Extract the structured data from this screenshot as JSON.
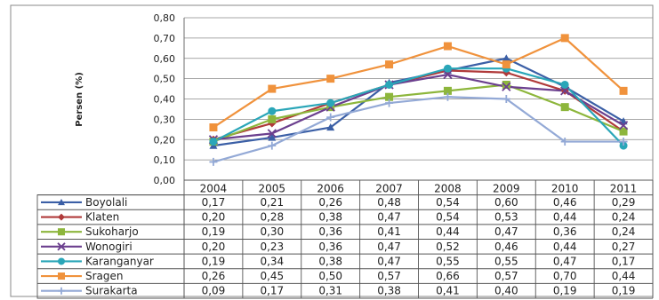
{
  "chart_data": {
    "type": "line",
    "ylabel": "Persen (%)",
    "ylim": [
      0,
      0.8
    ],
    "yticks": [
      "0,00",
      "0,10",
      "0,20",
      "0,30",
      "0,40",
      "0,50",
      "0,60",
      "0,70",
      "0,80"
    ],
    "categories": [
      "2004",
      "2005",
      "2006",
      "2007",
      "2008",
      "2009",
      "2010",
      "2011"
    ],
    "series": [
      {
        "name": "Boyolali",
        "color": "#3b5fa6",
        "marker": "triangle",
        "values": [
          0.17,
          0.21,
          0.26,
          0.48,
          0.54,
          0.6,
          0.46,
          0.29
        ],
        "labels": [
          "0,17",
          "0,21",
          "0,26",
          "0,48",
          "0,54",
          "0,60",
          "0,46",
          "0,29"
        ]
      },
      {
        "name": "Klaten",
        "color": "#b03a3a",
        "marker": "diamond",
        "values": [
          0.2,
          0.28,
          0.38,
          0.47,
          0.54,
          0.53,
          0.44,
          0.24
        ],
        "labels": [
          "0,20",
          "0,28",
          "0,38",
          "0,47",
          "0,54",
          "0,53",
          "0,44",
          "0,24"
        ]
      },
      {
        "name": "Sukoharjo",
        "color": "#8db63c",
        "marker": "square",
        "values": [
          0.19,
          0.3,
          0.36,
          0.41,
          0.44,
          0.47,
          0.36,
          0.24
        ],
        "labels": [
          "0,19",
          "0,30",
          "0,36",
          "0,41",
          "0,44",
          "0,47",
          "0,36",
          "0,24"
        ]
      },
      {
        "name": "Wonogiri",
        "color": "#6b3f8e",
        "marker": "x",
        "values": [
          0.2,
          0.23,
          0.36,
          0.47,
          0.52,
          0.46,
          0.44,
          0.27
        ],
        "labels": [
          "0,20",
          "0,23",
          "0,36",
          "0,47",
          "0,52",
          "0,46",
          "0,44",
          "0,27"
        ]
      },
      {
        "name": "Karanganyar",
        "color": "#2aa6b8",
        "marker": "circle",
        "values": [
          0.19,
          0.34,
          0.38,
          0.47,
          0.55,
          0.55,
          0.47,
          0.17
        ],
        "labels": [
          "0,19",
          "0,34",
          "0,38",
          "0,47",
          "0,55",
          "0,55",
          "0,47",
          "0,17"
        ]
      },
      {
        "name": "Sragen",
        "color": "#f0923c",
        "marker": "square",
        "values": [
          0.26,
          0.45,
          0.5,
          0.57,
          0.66,
          0.57,
          0.7,
          0.44
        ],
        "labels": [
          "0,26",
          "0,45",
          "0,50",
          "0,57",
          "0,66",
          "0,57",
          "0,70",
          "0,44"
        ]
      },
      {
        "name": "Surakarta",
        "color": "#93a9d6",
        "marker": "plus",
        "values": [
          0.09,
          0.17,
          0.31,
          0.38,
          0.41,
          0.4,
          0.19,
          0.19
        ],
        "labels": [
          "0,09",
          "0,17",
          "0,31",
          "0,38",
          "0,41",
          "0,40",
          "0,19",
          "0,19"
        ]
      }
    ]
  }
}
